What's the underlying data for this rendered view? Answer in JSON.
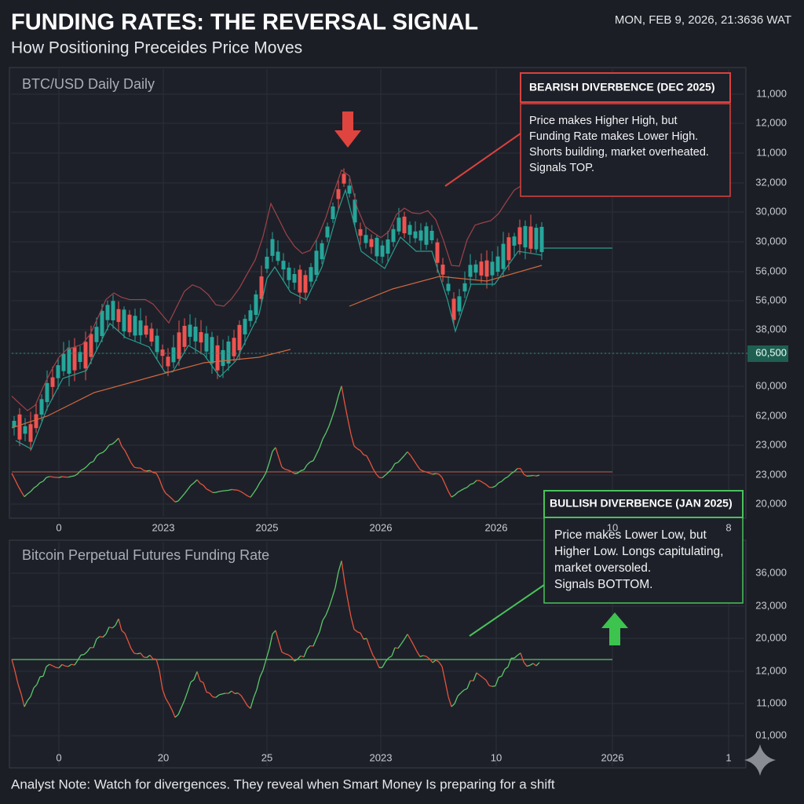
{
  "header": {
    "title": "FUNDING RATES: THE REVERSAL SIGNAL",
    "subtitle": "How Positioning Preceides Price Moves",
    "timestamp": "MON, FEB 9, 2026, 21:3636 WAT"
  },
  "price_panel": {
    "label": "BTC/USD Daily Daily",
    "y_labels": [
      "11,000",
      "12,000",
      "11,000",
      "32,000",
      "30,000",
      "30,000",
      "56,000",
      "56,000",
      "38,000",
      "60,500",
      "60,000",
      "62,000",
      "23,000",
      "23,000",
      "20,000"
    ],
    "x_labels": [
      "0",
      "2023",
      "2025",
      "2026",
      "2026",
      "10",
      "8"
    ]
  },
  "funding_panel": {
    "label": "Bitcoin Perpetual Futures Funding Rate",
    "y_labels": [
      "36,000",
      "23,000",
      "20,000",
      "12,000",
      "11,000",
      "01,000"
    ],
    "x_labels": [
      "0",
      "20",
      "25",
      "2023",
      "10",
      "2026",
      "1"
    ]
  },
  "bearish_note": {
    "title": "BEARISH DIVERBENCE (DEC 2025)",
    "lines": [
      "Price makes Higher High, but",
      "Funding Rate makes Lower High.",
      "Shorts building, market overheated.",
      "Signals TOP."
    ]
  },
  "bullish_note": {
    "title": "BULLISH DIVERBENCE (JAN 2025)",
    "lines": [
      "Price makes Lower Low, but",
      "Higher Low. Longs capitulating,",
      "market oversoled.",
      "Signals BOTTOM."
    ]
  },
  "footer": "Analyst Note: Watch for divergences. They reveal when Smart Money Is preparing for a shift"
}
